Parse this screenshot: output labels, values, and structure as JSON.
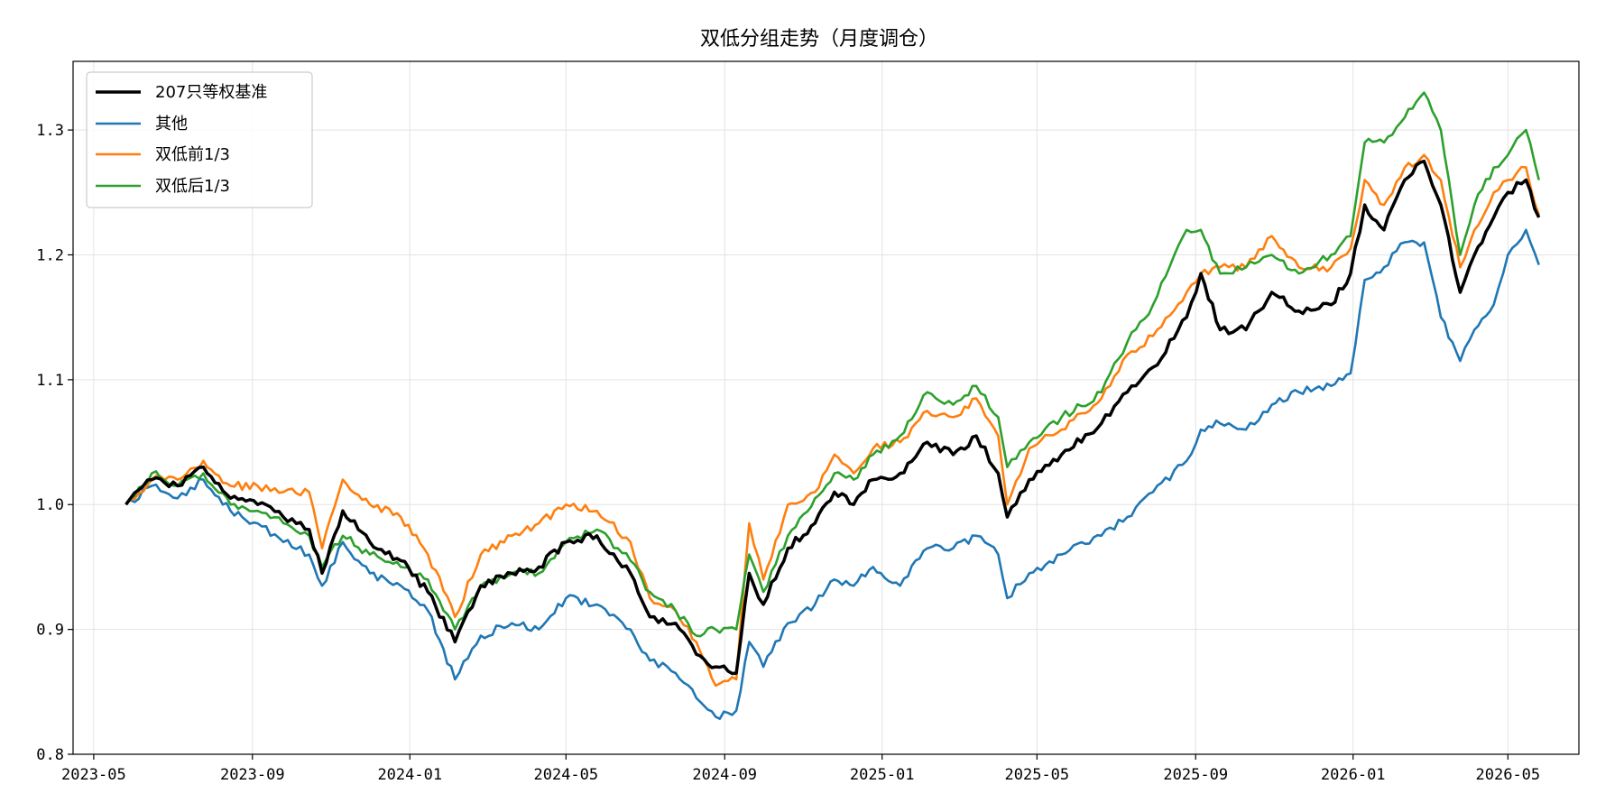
{
  "chart_data": {
    "type": "line",
    "title": "双低分组走势（月度调仓）",
    "xlabel": "",
    "ylabel": "",
    "x_type": "date",
    "xlim": [
      "2023-04-15",
      "2026-06-25"
    ],
    "ylim": [
      0.8,
      1.355
    ],
    "x_ticks": [
      "2023-05-01",
      "2023-09-01",
      "2024-01-01",
      "2024-05-01",
      "2024-09-01",
      "2025-01-01",
      "2025-05-01",
      "2025-09-01",
      "2026-01-01",
      "2026-05-01"
    ],
    "x_tick_labels": [
      "2023-05",
      "2023-09",
      "2024-01",
      "2024-05",
      "2024-09",
      "2025-01",
      "2025-05",
      "2025-09",
      "2026-01",
      "2026-05"
    ],
    "y_ticks": [
      0.8,
      0.9,
      1.0,
      1.1,
      1.2,
      1.3
    ],
    "y_tick_labels": [
      "0.8",
      "0.9",
      "1.0",
      "1.1",
      "1.2",
      "1.3"
    ],
    "grid": true,
    "legend_position": "top-left",
    "series": [
      {
        "name": "207只等权基准",
        "color": "#000000",
        "x": [
          "2023-05-26",
          "2023-06-15",
          "2023-07-05",
          "2023-07-25",
          "2023-08-15",
          "2023-09-05",
          "2023-09-25",
          "2023-10-15",
          "2023-10-25",
          "2023-11-10",
          "2023-12-01",
          "2023-12-25",
          "2024-01-15",
          "2024-02-05",
          "2024-02-25",
          "2024-03-20",
          "2024-04-10",
          "2024-05-01",
          "2024-05-25",
          "2024-06-20",
          "2024-07-05",
          "2024-07-25",
          "2024-08-10",
          "2024-08-25",
          "2024-09-10",
          "2024-09-20",
          "2024-10-01",
          "2024-10-20",
          "2024-11-10",
          "2024-11-25",
          "2024-12-10",
          "2024-12-25",
          "2025-01-15",
          "2025-02-05",
          "2025-02-25",
          "2025-03-15",
          "2025-04-01",
          "2025-04-08",
          "2025-04-25",
          "2025-05-20",
          "2025-06-20",
          "2025-07-10",
          "2025-07-30",
          "2025-08-25",
          "2025-09-05",
          "2025-09-20",
          "2025-10-10",
          "2025-10-30",
          "2025-11-20",
          "2025-12-15",
          "2025-12-30",
          "2026-01-10",
          "2026-01-25",
          "2026-02-10",
          "2026-02-25",
          "2026-03-10",
          "2026-03-25",
          "2026-04-05",
          "2026-04-20",
          "2026-05-01",
          "2026-05-15",
          "2026-05-25"
        ],
        "y": [
          1.0,
          1.02,
          1.015,
          1.03,
          1.005,
          1.0,
          0.99,
          0.98,
          0.945,
          0.995,
          0.97,
          0.955,
          0.93,
          0.89,
          0.935,
          0.945,
          0.95,
          0.97,
          0.975,
          0.945,
          0.91,
          0.905,
          0.88,
          0.87,
          0.865,
          0.945,
          0.92,
          0.965,
          0.985,
          1.01,
          1.0,
          1.02,
          1.025,
          1.05,
          1.04,
          1.055,
          1.025,
          0.99,
          1.02,
          1.04,
          1.065,
          1.09,
          1.11,
          1.15,
          1.185,
          1.14,
          1.14,
          1.17,
          1.155,
          1.16,
          1.185,
          1.24,
          1.22,
          1.26,
          1.275,
          1.24,
          1.17,
          1.2,
          1.23,
          1.25,
          1.26,
          1.23
        ]
      },
      {
        "name": "其他",
        "color": "#1f77b4",
        "x": [
          "2023-05-26",
          "2023-06-15",
          "2023-07-05",
          "2023-07-25",
          "2023-08-15",
          "2023-09-05",
          "2023-09-25",
          "2023-10-15",
          "2023-10-25",
          "2023-11-10",
          "2023-12-01",
          "2023-12-25",
          "2024-01-15",
          "2024-02-05",
          "2024-02-25",
          "2024-03-20",
          "2024-04-10",
          "2024-05-01",
          "2024-05-25",
          "2024-06-20",
          "2024-07-05",
          "2024-07-25",
          "2024-08-10",
          "2024-08-25",
          "2024-09-10",
          "2024-09-20",
          "2024-10-01",
          "2024-10-20",
          "2024-11-10",
          "2024-11-25",
          "2024-12-10",
          "2024-12-25",
          "2025-01-15",
          "2025-02-05",
          "2025-02-25",
          "2025-03-15",
          "2025-04-01",
          "2025-04-08",
          "2025-04-25",
          "2025-05-20",
          "2025-06-20",
          "2025-07-10",
          "2025-07-30",
          "2025-08-25",
          "2025-09-05",
          "2025-09-20",
          "2025-10-10",
          "2025-10-30",
          "2025-11-20",
          "2025-12-15",
          "2025-12-30",
          "2026-01-10",
          "2026-01-25",
          "2026-02-10",
          "2026-02-25",
          "2026-03-10",
          "2026-03-25",
          "2026-04-05",
          "2026-04-20",
          "2026-05-01",
          "2026-05-15",
          "2026-05-25"
        ],
        "y": [
          1.0,
          1.015,
          1.005,
          1.02,
          0.995,
          0.985,
          0.97,
          0.96,
          0.935,
          0.97,
          0.945,
          0.935,
          0.915,
          0.86,
          0.895,
          0.905,
          0.9,
          0.925,
          0.92,
          0.9,
          0.875,
          0.865,
          0.845,
          0.83,
          0.835,
          0.89,
          0.87,
          0.905,
          0.92,
          0.94,
          0.935,
          0.95,
          0.935,
          0.965,
          0.965,
          0.975,
          0.96,
          0.925,
          0.945,
          0.96,
          0.975,
          0.99,
          1.01,
          1.035,
          1.06,
          1.065,
          1.06,
          1.08,
          1.09,
          1.095,
          1.105,
          1.18,
          1.19,
          1.21,
          1.21,
          1.15,
          1.115,
          1.14,
          1.16,
          1.2,
          1.22,
          1.192
        ]
      },
      {
        "name": "双低前1/3",
        "color": "#ff7f0e",
        "x": [
          "2023-05-26",
          "2023-06-15",
          "2023-07-05",
          "2023-07-25",
          "2023-08-15",
          "2023-09-05",
          "2023-09-25",
          "2023-10-15",
          "2023-10-25",
          "2023-11-10",
          "2023-12-01",
          "2023-12-25",
          "2024-01-15",
          "2024-02-05",
          "2024-02-25",
          "2024-03-20",
          "2024-04-10",
          "2024-05-01",
          "2024-05-25",
          "2024-06-20",
          "2024-07-05",
          "2024-07-25",
          "2024-08-10",
          "2024-08-25",
          "2024-09-10",
          "2024-09-20",
          "2024-10-01",
          "2024-10-20",
          "2024-11-10",
          "2024-11-25",
          "2024-12-10",
          "2024-12-25",
          "2025-01-15",
          "2025-02-05",
          "2025-02-25",
          "2025-03-15",
          "2025-04-01",
          "2025-04-08",
          "2025-04-25",
          "2025-05-20",
          "2025-06-20",
          "2025-07-10",
          "2025-07-30",
          "2025-08-25",
          "2025-09-05",
          "2025-09-20",
          "2025-10-10",
          "2025-10-30",
          "2025-11-20",
          "2025-12-15",
          "2025-12-30",
          "2026-01-10",
          "2026-01-25",
          "2026-02-10",
          "2026-02-25",
          "2026-03-10",
          "2026-03-25",
          "2026-04-05",
          "2026-04-20",
          "2026-05-01",
          "2026-05-15",
          "2026-05-25"
        ],
        "y": [
          1.0,
          1.02,
          1.02,
          1.035,
          1.015,
          1.015,
          1.01,
          1.01,
          0.965,
          1.02,
          1.0,
          0.99,
          0.96,
          0.91,
          0.96,
          0.975,
          0.985,
          1.0,
          0.995,
          0.97,
          0.925,
          0.915,
          0.89,
          0.855,
          0.86,
          0.985,
          0.94,
          1.0,
          1.01,
          1.04,
          1.025,
          1.045,
          1.05,
          1.075,
          1.07,
          1.085,
          1.055,
          1.0,
          1.045,
          1.06,
          1.085,
          1.12,
          1.135,
          1.17,
          1.185,
          1.19,
          1.19,
          1.215,
          1.19,
          1.19,
          1.205,
          1.26,
          1.24,
          1.27,
          1.28,
          1.26,
          1.19,
          1.22,
          1.25,
          1.26,
          1.27,
          1.232
        ]
      },
      {
        "name": "双低后1/3",
        "color": "#2ca02c",
        "x": [
          "2023-05-26",
          "2023-06-15",
          "2023-07-05",
          "2023-07-25",
          "2023-08-15",
          "2023-09-05",
          "2023-09-25",
          "2023-10-15",
          "2023-10-25",
          "2023-11-10",
          "2023-12-01",
          "2023-12-25",
          "2024-01-15",
          "2024-02-05",
          "2024-02-25",
          "2024-03-20",
          "2024-04-10",
          "2024-05-01",
          "2024-05-25",
          "2024-06-20",
          "2024-07-05",
          "2024-07-25",
          "2024-08-10",
          "2024-08-25",
          "2024-09-10",
          "2024-09-20",
          "2024-10-01",
          "2024-10-20",
          "2024-11-10",
          "2024-11-25",
          "2024-12-10",
          "2024-12-25",
          "2025-01-15",
          "2025-02-05",
          "2025-02-25",
          "2025-03-15",
          "2025-04-01",
          "2025-04-08",
          "2025-04-25",
          "2025-05-20",
          "2025-06-20",
          "2025-07-10",
          "2025-07-30",
          "2025-08-25",
          "2025-09-05",
          "2025-09-20",
          "2025-10-10",
          "2025-10-30",
          "2025-11-20",
          "2025-12-15",
          "2025-12-30",
          "2026-01-10",
          "2026-01-25",
          "2026-02-10",
          "2026-02-25",
          "2026-03-10",
          "2026-03-25",
          "2026-04-05",
          "2026-04-20",
          "2026-05-01",
          "2026-05-15",
          "2026-05-25"
        ],
        "y": [
          1.0,
          1.025,
          1.015,
          1.025,
          1.0,
          0.995,
          0.985,
          0.975,
          0.95,
          0.975,
          0.96,
          0.95,
          0.94,
          0.9,
          0.935,
          0.945,
          0.945,
          0.97,
          0.98,
          0.955,
          0.93,
          0.915,
          0.895,
          0.9,
          0.9,
          0.96,
          0.93,
          0.975,
          1.005,
          1.025,
          1.02,
          1.04,
          1.055,
          1.09,
          1.08,
          1.095,
          1.07,
          1.03,
          1.05,
          1.07,
          1.09,
          1.13,
          1.16,
          1.22,
          1.22,
          1.185,
          1.19,
          1.2,
          1.185,
          1.2,
          1.215,
          1.29,
          1.29,
          1.31,
          1.33,
          1.3,
          1.2,
          1.24,
          1.27,
          1.28,
          1.3,
          1.26
        ]
      }
    ]
  }
}
